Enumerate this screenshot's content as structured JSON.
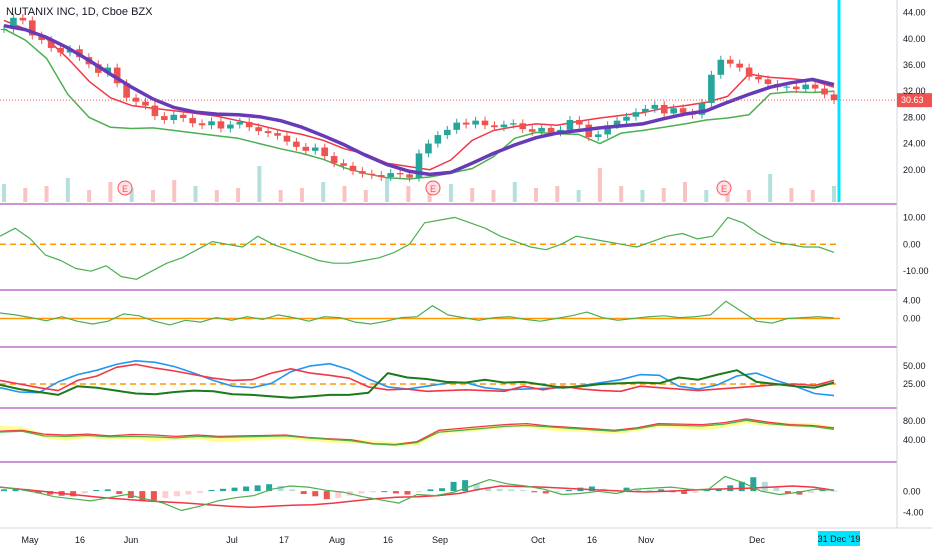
{
  "header": {
    "title": "NUTANIX INC, 1D, Cboe BZX"
  },
  "colors": {
    "up": "#26a69a",
    "down": "#ef5350",
    "ma": "#673ab7",
    "red_line": "#f23645",
    "green_line": "#4caf50",
    "orange_ref": "#ff9800",
    "blue_line": "#2196f3",
    "yellow_band": "#ffff8d",
    "divider": "#9c27b0",
    "cursor": "#00e5ff",
    "earnings": "#f7525f"
  },
  "x_axis": {
    "labels": [
      "May",
      "16",
      "Jun",
      "Jul",
      "17",
      "Aug",
      "16",
      "Sep",
      "Oct",
      "16",
      "Nov",
      "Dec"
    ],
    "cursor_label": "31 Dec '19"
  },
  "earnings_markers": [
    "E",
    "E",
    "E"
  ],
  "chart_data": [
    {
      "type": "candlestick",
      "title": "NUTANIX INC, 1D, Cboe BZX",
      "ylim": [
        16,
        45
      ],
      "y_ticks": [
        "44.00",
        "40.00",
        "36.00",
        "32.00",
        "28.00",
        "24.00",
        "20.00"
      ],
      "last_price": "30.63",
      "series": [
        {
          "name": "close",
          "values": [
            41.5,
            43.2,
            42.8,
            40.5,
            39.8,
            38.6,
            37.9,
            38.4,
            37.2,
            36.1,
            34.8,
            35.6,
            33.2,
            31.0,
            30.4,
            29.8,
            28.2,
            27.6,
            28.4,
            27.9,
            27.1,
            26.8,
            27.4,
            26.3,
            26.9,
            27.3,
            26.5,
            25.9,
            25.6,
            25.2,
            24.3,
            23.5,
            22.9,
            23.4,
            22.1,
            21.0,
            20.6,
            19.8,
            19.4,
            19.2,
            18.9,
            19.5,
            19.3,
            18.8,
            22.5,
            24.0,
            25.3,
            26.1,
            27.2,
            26.9,
            27.5,
            26.8,
            26.5,
            26.9,
            27.1,
            26.2,
            25.8,
            26.4,
            25.7,
            26.1,
            27.6,
            26.9,
            25.0,
            25.4,
            26.8,
            27.5,
            28.1,
            28.8,
            29.3,
            29.9,
            28.6,
            29.4,
            28.7,
            28.4,
            30.2,
            34.5,
            36.8,
            36.2,
            35.6,
            34.2,
            33.8,
            33.1,
            32.6,
            32.7,
            32.3,
            33.0,
            32.4,
            31.5,
            30.63
          ]
        },
        {
          "name": "MA",
          "values": [
            42.0,
            41.4,
            40.2,
            38.6,
            36.7,
            34.6,
            32.6,
            30.8,
            29.5,
            28.8,
            28.5,
            28.4,
            28.1,
            27.5,
            26.5,
            25.2,
            23.8,
            22.2,
            20.8,
            19.8,
            19.3,
            19.6,
            21.0,
            22.5,
            23.8,
            24.9,
            25.6,
            26.0,
            26.4,
            26.7,
            27.0,
            27.8,
            28.5,
            29.0,
            30.3,
            31.5,
            32.6,
            33.3,
            33.8,
            33.0
          ]
        },
        {
          "name": "upper",
          "values": [
            42.8,
            41.5,
            40.0,
            37.0,
            33.5,
            31.0,
            29.8,
            29.4,
            29.0,
            28.6,
            28.2,
            27.5,
            26.8,
            26.0,
            25.4,
            24.5,
            23.2,
            22.4,
            21.0,
            20.5,
            20.0,
            21.5,
            24.5,
            26.0,
            26.6,
            27.0,
            26.8,
            27.4,
            27.9,
            28.3,
            28.7,
            29.4,
            29.8,
            30.3,
            31.2,
            34.6,
            34.1,
            33.9,
            33.6,
            32.6
          ]
        },
        {
          "name": "lower",
          "values": [
            41.5,
            39.8,
            37.0,
            31.5,
            28.0,
            26.5,
            26.3,
            26.4,
            26.0,
            25.6,
            25.2,
            24.8,
            24.0,
            23.2,
            22.5,
            21.6,
            20.3,
            19.4,
            18.8,
            18.6,
            18.9,
            19.5,
            20.2,
            22.0,
            24.8,
            25.7,
            25.5,
            25.4,
            24.0,
            25.6,
            26.0,
            26.5,
            27.0,
            27.6,
            27.9,
            28.4,
            31.6,
            31.9,
            31.8,
            32.0
          ]
        },
        {
          "name": "volume",
          "values": [
            0.45,
            0.35,
            0.4,
            0.6,
            0.3,
            0.5,
            0.35,
            0.3,
            0.55,
            0.4,
            0.3,
            0.35,
            0.9,
            0.3,
            0.35,
            0.5,
            0.4,
            0.3,
            0.6,
            0.4,
            0.3,
            0.45,
            0.35,
            0.3,
            0.5,
            0.35,
            0.4,
            0.3,
            0.85,
            0.4,
            0.3,
            0.35,
            0.5,
            0.3,
            0.4,
            0.3,
            0.7,
            0.35,
            0.3,
            0.4
          ]
        }
      ]
    },
    {
      "type": "line",
      "y_ticks": [
        "10.00",
        "0.00",
        "-10.00"
      ],
      "ylim": [
        -14,
        12
      ],
      "ref_line": 0,
      "series": [
        {
          "name": "osc1",
          "values": [
            3,
            6,
            2,
            -4,
            -6,
            -9,
            -10,
            -8,
            -12,
            -13,
            -10,
            -7,
            -5,
            -2,
            1,
            0,
            -1,
            3,
            0,
            -2,
            -4,
            -6,
            -7,
            -7,
            -6,
            -5,
            -3,
            0,
            8,
            9,
            10,
            8,
            6,
            3,
            1,
            -1,
            -2,
            0,
            3,
            2,
            1,
            0,
            -1,
            1,
            3,
            4,
            2,
            3,
            10,
            8,
            4,
            1,
            0,
            -1,
            -1,
            -3
          ]
        }
      ]
    },
    {
      "type": "line",
      "y_ticks": [
        "4.00",
        "0.00"
      ],
      "ylim": [
        -4.5,
        4.5
      ],
      "ref_line": 0,
      "series": [
        {
          "name": "osc2",
          "values": [
            1.2,
            0.8,
            0.2,
            -0.5,
            0.4,
            -0.6,
            -1.2,
            -0.6,
            1.0,
            0.6,
            -0.6,
            -1.4,
            -0.4,
            -0.8,
            0.2,
            -0.4,
            0.4,
            -0.2,
            0.8,
            0.2,
            -0.6,
            0.4,
            0.2,
            -0.8,
            -1.2,
            -0.6,
            0.2,
            0.4,
            2.8,
            0.8,
            0.2,
            -0.4,
            0.2,
            0.4,
            -0.2,
            -0.6,
            0.0,
            0.6,
            1.4,
            0.2,
            -0.4,
            0.0,
            0.4,
            0.6,
            0.2,
            0.4,
            0.8,
            3.8,
            1.6,
            -0.6,
            -1.0,
            0.0,
            0.2,
            0.4,
            0.1
          ]
        }
      ]
    },
    {
      "type": "line",
      "y_ticks": [
        "50.00",
        "25.00"
      ],
      "ylim": [
        3,
        65
      ],
      "ref_line": 25,
      "series": [
        {
          "name": "blue",
          "values": [
            20,
            14,
            13,
            28,
            38,
            44,
            52,
            57,
            55,
            49,
            40,
            30,
            22,
            20,
            26,
            42,
            50,
            53,
            45,
            32,
            21,
            18,
            22,
            26,
            27,
            20,
            17,
            18,
            19,
            20,
            23,
            27,
            31,
            38,
            37,
            22,
            18,
            24,
            36,
            40,
            30,
            22,
            12,
            9
          ]
        },
        {
          "name": "red",
          "values": [
            30,
            25,
            20,
            16,
            30,
            36,
            48,
            52,
            47,
            43,
            38,
            33,
            30,
            31,
            40,
            46,
            40,
            37,
            33,
            21,
            17,
            18,
            15,
            16,
            17,
            16,
            15,
            22,
            17,
            22,
            18,
            16,
            15,
            22,
            20,
            18,
            16,
            18,
            20,
            22,
            24,
            25,
            23,
            30
          ]
        },
        {
          "name": "green",
          "values": [
            24,
            18,
            14,
            10,
            22,
            20,
            16,
            12,
            11,
            14,
            16,
            15,
            11,
            10,
            8,
            6,
            8,
            10,
            10,
            13,
            40,
            34,
            32,
            28,
            27,
            31,
            27,
            28,
            24,
            20,
            22,
            25,
            26,
            27,
            26,
            34,
            31,
            38,
            44,
            28,
            25,
            22,
            20,
            27
          ]
        }
      ]
    },
    {
      "type": "line",
      "y_ticks": [
        "80.00",
        "40.00"
      ],
      "ylim": [
        10,
        90
      ],
      "series": [
        {
          "name": "yellow",
          "values": [
            65,
            63,
            48,
            42,
            48,
            45,
            46,
            41,
            44,
            45,
            39,
            42,
            43,
            45,
            42,
            38,
            38,
            34,
            30,
            32,
            58,
            60,
            64,
            69,
            70,
            64,
            61,
            60,
            56,
            62,
            71,
            68,
            64,
            70,
            78,
            73,
            72,
            71,
            63
          ]
        },
        {
          "name": "red",
          "values": [
            58,
            60,
            52,
            50,
            52,
            48,
            51,
            50,
            47,
            50,
            47,
            48,
            49,
            50,
            45,
            42,
            40,
            32,
            30,
            36,
            60,
            64,
            68,
            72,
            74,
            69,
            66,
            63,
            60,
            65,
            74,
            73,
            72,
            76,
            84,
            77,
            72,
            70,
            65
          ]
        },
        {
          "name": "green",
          "values": [
            56,
            58,
            48,
            47,
            49,
            46,
            47,
            46,
            44,
            47,
            45,
            46,
            47,
            48,
            44,
            41,
            38,
            31,
            29,
            34,
            56,
            60,
            64,
            68,
            70,
            67,
            64,
            61,
            58,
            63,
            71,
            70,
            69,
            73,
            81,
            74,
            70,
            68,
            62
          ]
        }
      ]
    },
    {
      "type": "bar",
      "y_ticks": [
        "0.00",
        "-4.00"
      ],
      "ylim": [
        -5,
        4
      ],
      "ref_line": 0,
      "series": [
        {
          "name": "histogram",
          "values": [
            0.3,
            0.5,
            0.4,
            -0.4,
            -0.6,
            -0.8,
            -0.9,
            -0.4,
            0.2,
            0.3,
            -0.5,
            -1.2,
            -1.6,
            -1.8,
            -1.2,
            -0.9,
            -0.6,
            -0.3,
            0.2,
            0.4,
            0.6,
            0.8,
            1.0,
            1.2,
            0.9,
            0.3,
            -0.5,
            -0.9,
            -1.4,
            -1.2,
            -0.8,
            -0.4,
            -0.2,
            0.0,
            -0.4,
            -0.6,
            -0.2,
            0.3,
            0.5,
            1.6,
            1.9,
            1.2,
            0.6,
            0.4,
            0.3,
            0.2,
            -0.2,
            -0.4,
            -0.2,
            0.2,
            0.6,
            0.8,
            0.4,
            0.2,
            0.6,
            0.4,
            0.2,
            0.3,
            -0.2,
            -0.5,
            -0.3,
            0.2,
            0.4,
            1.0,
            1.6,
            2.4,
            1.6,
            0.6,
            -0.4,
            -0.6,
            -0.3,
            0.2,
            0.1
          ]
        },
        {
          "name": "signal",
          "values": [
            0.8,
            0.4,
            0.0,
            -0.4,
            -0.8,
            -1.2,
            -1.5,
            -1.8,
            -2.0,
            -2.2,
            -2.5,
            -2.8,
            -3.0,
            -2.8,
            -2.6,
            -2.5,
            -2.2,
            -1.8,
            -1.4,
            -1.1,
            -1.0,
            -0.8,
            -0.4,
            0.4,
            1.0,
            0.9,
            0.8,
            0.6,
            0.4,
            0.2,
            0.0,
            -0.1,
            0.0,
            0.2,
            0.4,
            0.5,
            0.6,
            0.8,
            1.0,
            0.8,
            0.2
          ]
        },
        {
          "name": "macd",
          "values": [
            0.8,
            0.4,
            -0.2,
            -1.0,
            -1.4,
            -1.8,
            -1.2,
            -0.6,
            -1.4,
            -2.2,
            -3.6,
            -2.8,
            -1.8,
            -1.2,
            -0.8,
            0.4,
            1.0,
            0.8,
            0.2,
            -0.2,
            -1.0,
            -1.6,
            -2.2,
            -0.6,
            -0.8,
            -0.2,
            1.0,
            2.2,
            1.4,
            1.0,
            0.4,
            -0.6,
            -0.4,
            0.0,
            -0.4,
            0.4,
            0.6,
            0.8,
            0.4,
            0.2,
            2.8,
            1.6,
            0.0,
            -0.6,
            -0.2,
            0.4,
            0.2
          ]
        }
      ]
    }
  ]
}
